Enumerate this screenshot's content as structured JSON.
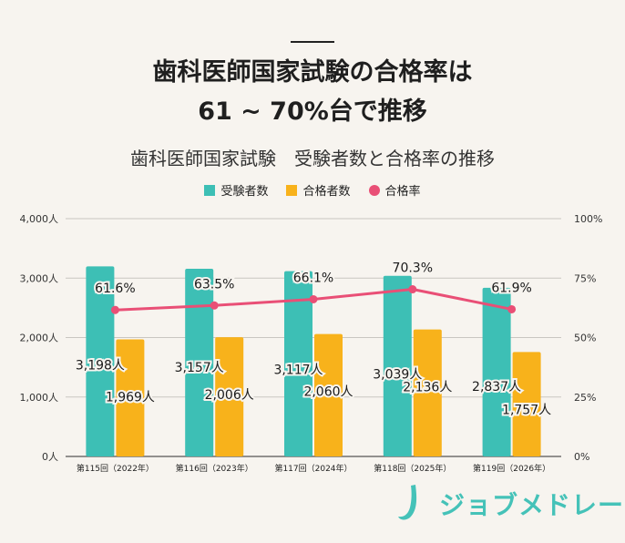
{
  "header": {
    "title_line1": "歯科医師国家試験の合格率は",
    "title_line2": "61 ~ 70%台で推移"
  },
  "chart_data": {
    "type": "bar",
    "title": "歯科医師国家試験　受験者数と合格率の推移",
    "categories": [
      "第115回（2022年）",
      "第116回（2023年）",
      "第117回（2024年）",
      "第118回（2025年）",
      "第119回（2026年）"
    ],
    "series": [
      {
        "name": "受験者数",
        "type": "bar",
        "color": "#3dbfb5",
        "values": [
          3198,
          3157,
          3117,
          3039,
          2837
        ],
        "labels": [
          "3,198人",
          "3,157人",
          "3,117人",
          "3,039人",
          "2,837人"
        ]
      },
      {
        "name": "合格者数",
        "type": "bar",
        "color": "#f8b21b",
        "values": [
          1969,
          2006,
          2060,
          2136,
          1757
        ],
        "labels": [
          "1,969人",
          "2,006人",
          "2,060人",
          "2,136人",
          "1,757人"
        ]
      },
      {
        "name": "合格率",
        "type": "line",
        "axis": "right",
        "color": "#e94f76",
        "values": [
          61.6,
          63.5,
          66.1,
          70.3,
          61.9
        ],
        "labels": [
          "61.6%",
          "63.5%",
          "66.1%",
          "70.3%",
          "61.9%"
        ]
      }
    ],
    "y_left": {
      "ylim": [
        0,
        4000
      ],
      "ticks": [
        "0人",
        "1,000人",
        "2,000人",
        "3,000人",
        "4,000人"
      ]
    },
    "y_right": {
      "ylim": [
        0,
        100
      ],
      "ticks": [
        "0%",
        "25%",
        "50%",
        "75%",
        "100%"
      ]
    },
    "grid": true,
    "legend_position": "top"
  },
  "brand": {
    "name": "ジョブメドレー"
  }
}
